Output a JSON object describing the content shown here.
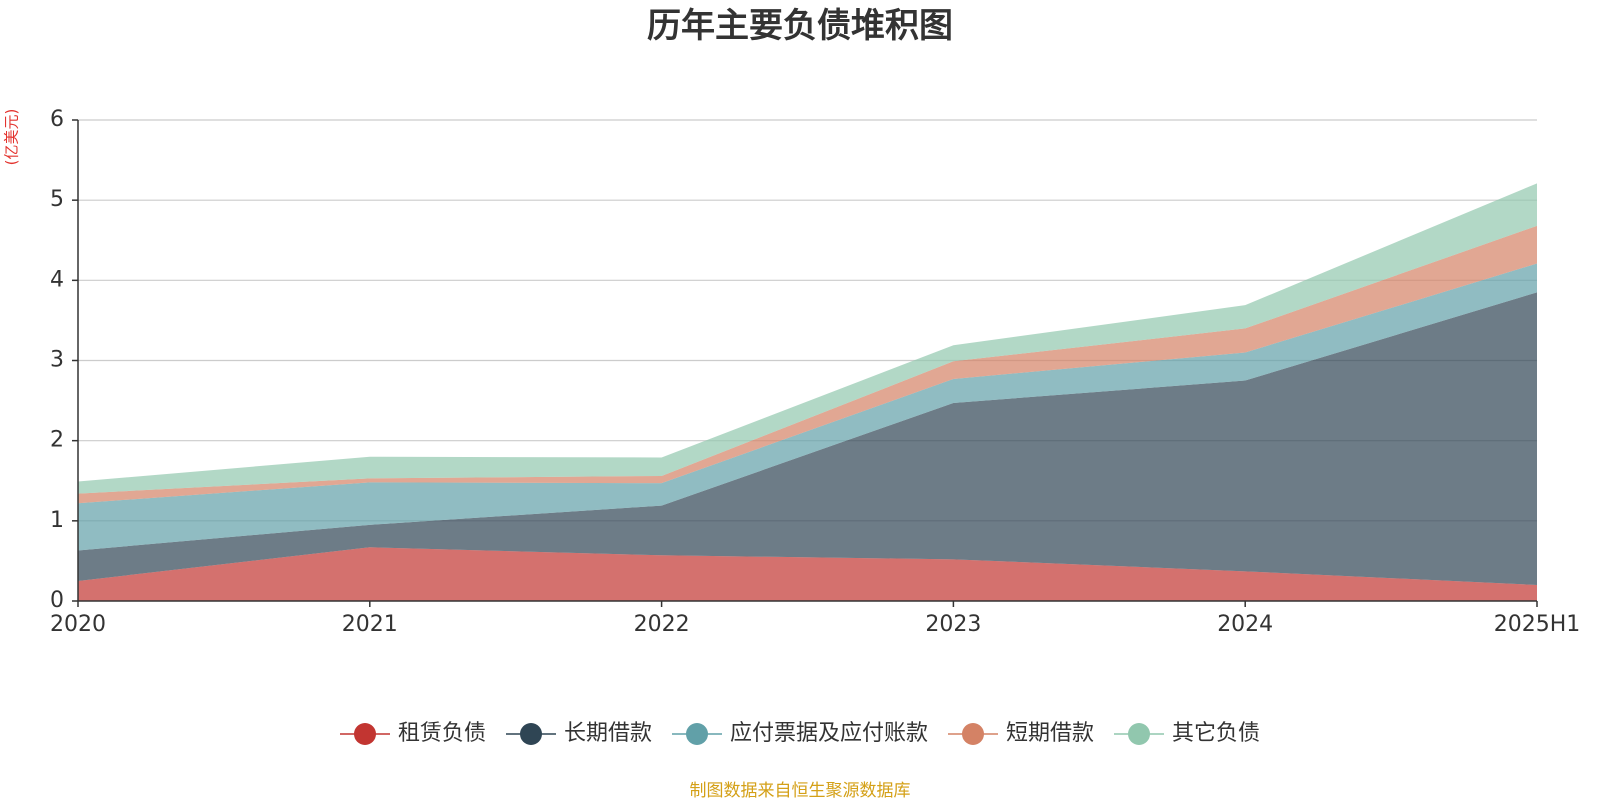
{
  "chart_data": {
    "type": "area",
    "stacked": true,
    "title": "历年主要负债堆积图",
    "unit_label": "(亿美元)",
    "categories": [
      "2020",
      "2021",
      "2022",
      "2023",
      "2024",
      "2025H1"
    ],
    "ylim": [
      0,
      6
    ],
    "yticks": [
      0,
      1,
      2,
      3,
      4,
      5,
      6
    ],
    "grid": true,
    "legend_position": "bottom",
    "series": [
      {
        "name": "租赁负债",
        "color": "#c23531",
        "values": [
          0.25,
          0.67,
          0.57,
          0.52,
          0.37,
          0.2
        ]
      },
      {
        "name": "长期借款",
        "color": "#2f4554",
        "values": [
          0.38,
          0.28,
          0.62,
          1.95,
          2.38,
          3.65
        ]
      },
      {
        "name": "应付票据及应付账款",
        "color": "#61a0a8",
        "values": [
          0.59,
          0.53,
          0.28,
          0.3,
          0.35,
          0.36
        ]
      },
      {
        "name": "短期借款",
        "color": "#d48265",
        "values": [
          0.12,
          0.05,
          0.09,
          0.22,
          0.3,
          0.47
        ]
      },
      {
        "name": "其它负债",
        "color": "#91c7ae",
        "values": [
          0.15,
          0.27,
          0.23,
          0.2,
          0.29,
          0.53
        ]
      }
    ]
  },
  "source_note": "制图数据来自恒生聚源数据库"
}
